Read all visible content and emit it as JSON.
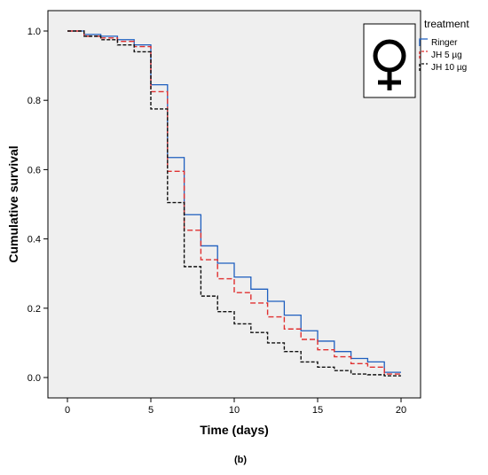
{
  "chart_data": {
    "type": "line",
    "step": true,
    "xlabel": "Time (days)",
    "ylabel": "Cumulative survival",
    "xlim": [
      0,
      20
    ],
    "ylim": [
      0,
      1.0
    ],
    "x_ticks": [
      "0",
      "5",
      "10",
      "15",
      "20"
    ],
    "y_ticks": [
      "0.0",
      "0.2",
      "0.4",
      "0.6",
      "0.8",
      "1.0"
    ],
    "grid": false,
    "legend_title": "treatment",
    "legend_position": "top-right",
    "symbol": "female-symbol",
    "caption": "(b)",
    "series": [
      {
        "name": "Ringer",
        "color": "#1f5fbf",
        "dash": "solid",
        "x": [
          0,
          1,
          2,
          3,
          4,
          5,
          6,
          7,
          8,
          9,
          10,
          11,
          12,
          13,
          14,
          15,
          16,
          17,
          18,
          19,
          20
        ],
        "y": [
          1.0,
          0.99,
          0.985,
          0.975,
          0.96,
          0.845,
          0.635,
          0.47,
          0.38,
          0.33,
          0.29,
          0.255,
          0.22,
          0.18,
          0.135,
          0.105,
          0.075,
          0.055,
          0.045,
          0.015,
          0.015
        ]
      },
      {
        "name": "JH 5 µg",
        "color": "#e03030",
        "dash": "dashed",
        "x": [
          0,
          1,
          2,
          3,
          4,
          5,
          6,
          7,
          8,
          9,
          10,
          11,
          12,
          13,
          14,
          15,
          16,
          17,
          18,
          19,
          20
        ],
        "y": [
          1.0,
          0.985,
          0.98,
          0.97,
          0.955,
          0.825,
          0.595,
          0.425,
          0.34,
          0.285,
          0.245,
          0.215,
          0.175,
          0.14,
          0.11,
          0.08,
          0.06,
          0.04,
          0.03,
          0.01,
          0.01
        ]
      },
      {
        "name": "JH 10 µg",
        "color": "#111111",
        "dash": "dashed",
        "x": [
          0,
          1,
          2,
          3,
          4,
          5,
          6,
          7,
          8,
          9,
          10,
          11,
          12,
          13,
          14,
          15,
          16,
          17,
          18,
          19,
          20
        ],
        "y": [
          1.0,
          0.985,
          0.975,
          0.96,
          0.94,
          0.775,
          0.505,
          0.32,
          0.235,
          0.19,
          0.155,
          0.13,
          0.1,
          0.075,
          0.045,
          0.03,
          0.02,
          0.01,
          0.008,
          0.005,
          0.005
        ]
      }
    ]
  }
}
